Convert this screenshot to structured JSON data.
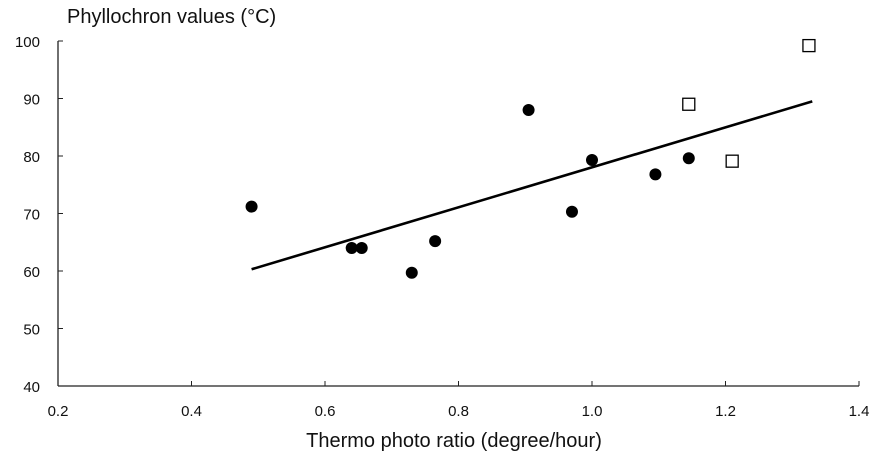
{
  "chart_data": {
    "type": "scatter",
    "title": "",
    "ylabel": "Phyllochron values (°C)",
    "xlabel": "Thermo photo ratio (degree/hour)",
    "xlim": [
      0.2,
      1.4
    ],
    "ylim": [
      40,
      100
    ],
    "x_ticks": [
      "0.2",
      "0.4",
      "0.6",
      "0.8",
      "1.0",
      "1.2",
      "1.4"
    ],
    "y_ticks": [
      "40",
      "50",
      "60",
      "70",
      "80",
      "90",
      "100"
    ],
    "grid": false,
    "legend": "none",
    "series": [
      {
        "marker": "filled-circle",
        "points": [
          {
            "x": 0.49,
            "y": 71.2
          },
          {
            "x": 0.64,
            "y": 64.0
          },
          {
            "x": 0.655,
            "y": 64.0
          },
          {
            "x": 0.73,
            "y": 59.7
          },
          {
            "x": 0.765,
            "y": 65.2
          },
          {
            "x": 0.905,
            "y": 88.0
          },
          {
            "x": 0.97,
            "y": 70.3
          },
          {
            "x": 1.0,
            "y": 79.3
          },
          {
            "x": 1.095,
            "y": 76.8
          },
          {
            "x": 1.145,
            "y": 79.6
          }
        ]
      },
      {
        "marker": "open-square",
        "points": [
          {
            "x": 1.145,
            "y": 89.0
          },
          {
            "x": 1.21,
            "y": 79.1
          },
          {
            "x": 1.325,
            "y": 99.2
          }
        ]
      }
    ],
    "trendline": {
      "x": [
        0.49,
        1.33
      ],
      "y": [
        60.3,
        89.5
      ]
    }
  }
}
